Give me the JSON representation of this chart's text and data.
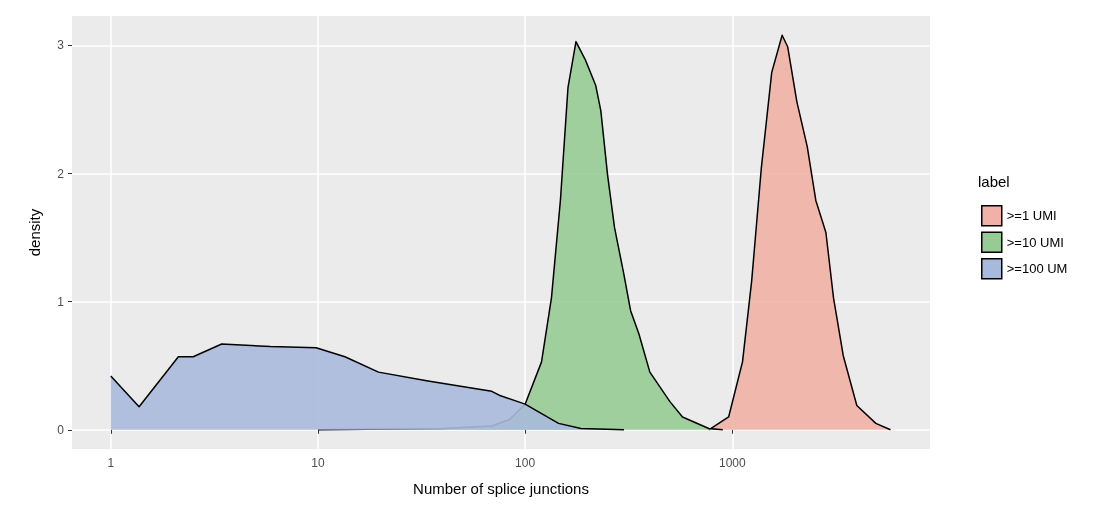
{
  "chart_data": {
    "type": "area",
    "xlabel": "Number of splice junctions",
    "ylabel": "density",
    "legend_title": "label",
    "log": "x",
    "grid": true,
    "legend": "right",
    "line_style": "solid",
    "marker": "none",
    "xlim": [
      0.65,
      9000
    ],
    "xticks": [
      1,
      10,
      100,
      1000
    ],
    "ylim": [
      -0.15,
      3.23
    ],
    "yticks": [
      0,
      1,
      2,
      3
    ],
    "series": [
      {
        "name": ">=1 UMI",
        "color": "#f1b1a6",
        "x": [
          770,
          960,
          1120,
          1240,
          1380,
          1550,
          1740,
          1850,
          2050,
          2300,
          2530,
          2830,
          3080,
          3430,
          3990,
          4930,
          5800
        ],
        "values": [
          0,
          0.1,
          0.53,
          1.16,
          2.04,
          2.79,
          3.08,
          2.99,
          2.56,
          2.21,
          1.79,
          1.54,
          1.03,
          0.58,
          0.19,
          0.05,
          0
        ]
      },
      {
        "name": ">=10 UMI",
        "color": "#96cc94",
        "x": [
          10,
          40,
          69,
          84,
          100,
          120,
          134,
          148,
          161,
          176,
          195,
          219,
          232,
          250,
          270,
          300,
          323,
          354,
          400,
          500,
          575,
          770,
          900
        ],
        "values": [
          0,
          0.01,
          0.03,
          0.08,
          0.2,
          0.53,
          1.03,
          1.79,
          2.67,
          3.03,
          2.89,
          2.69,
          2.49,
          1.99,
          1.58,
          1.21,
          0.93,
          0.75,
          0.45,
          0.22,
          0.1,
          0.01,
          0
        ]
      },
      {
        "name": ">=100 UM",
        "color": "#a8badc",
        "x": [
          1,
          1.37,
          2.12,
          2.5,
          3.43,
          5.9,
          9.8,
          13.5,
          19.6,
          34,
          69,
          75,
          100,
          145,
          186,
          300
        ],
        "values": [
          0.42,
          0.18,
          0.57,
          0.57,
          0.67,
          0.65,
          0.64,
          0.57,
          0.45,
          0.38,
          0.3,
          0.27,
          0.2,
          0.05,
          0.01,
          0
        ]
      }
    ]
  }
}
